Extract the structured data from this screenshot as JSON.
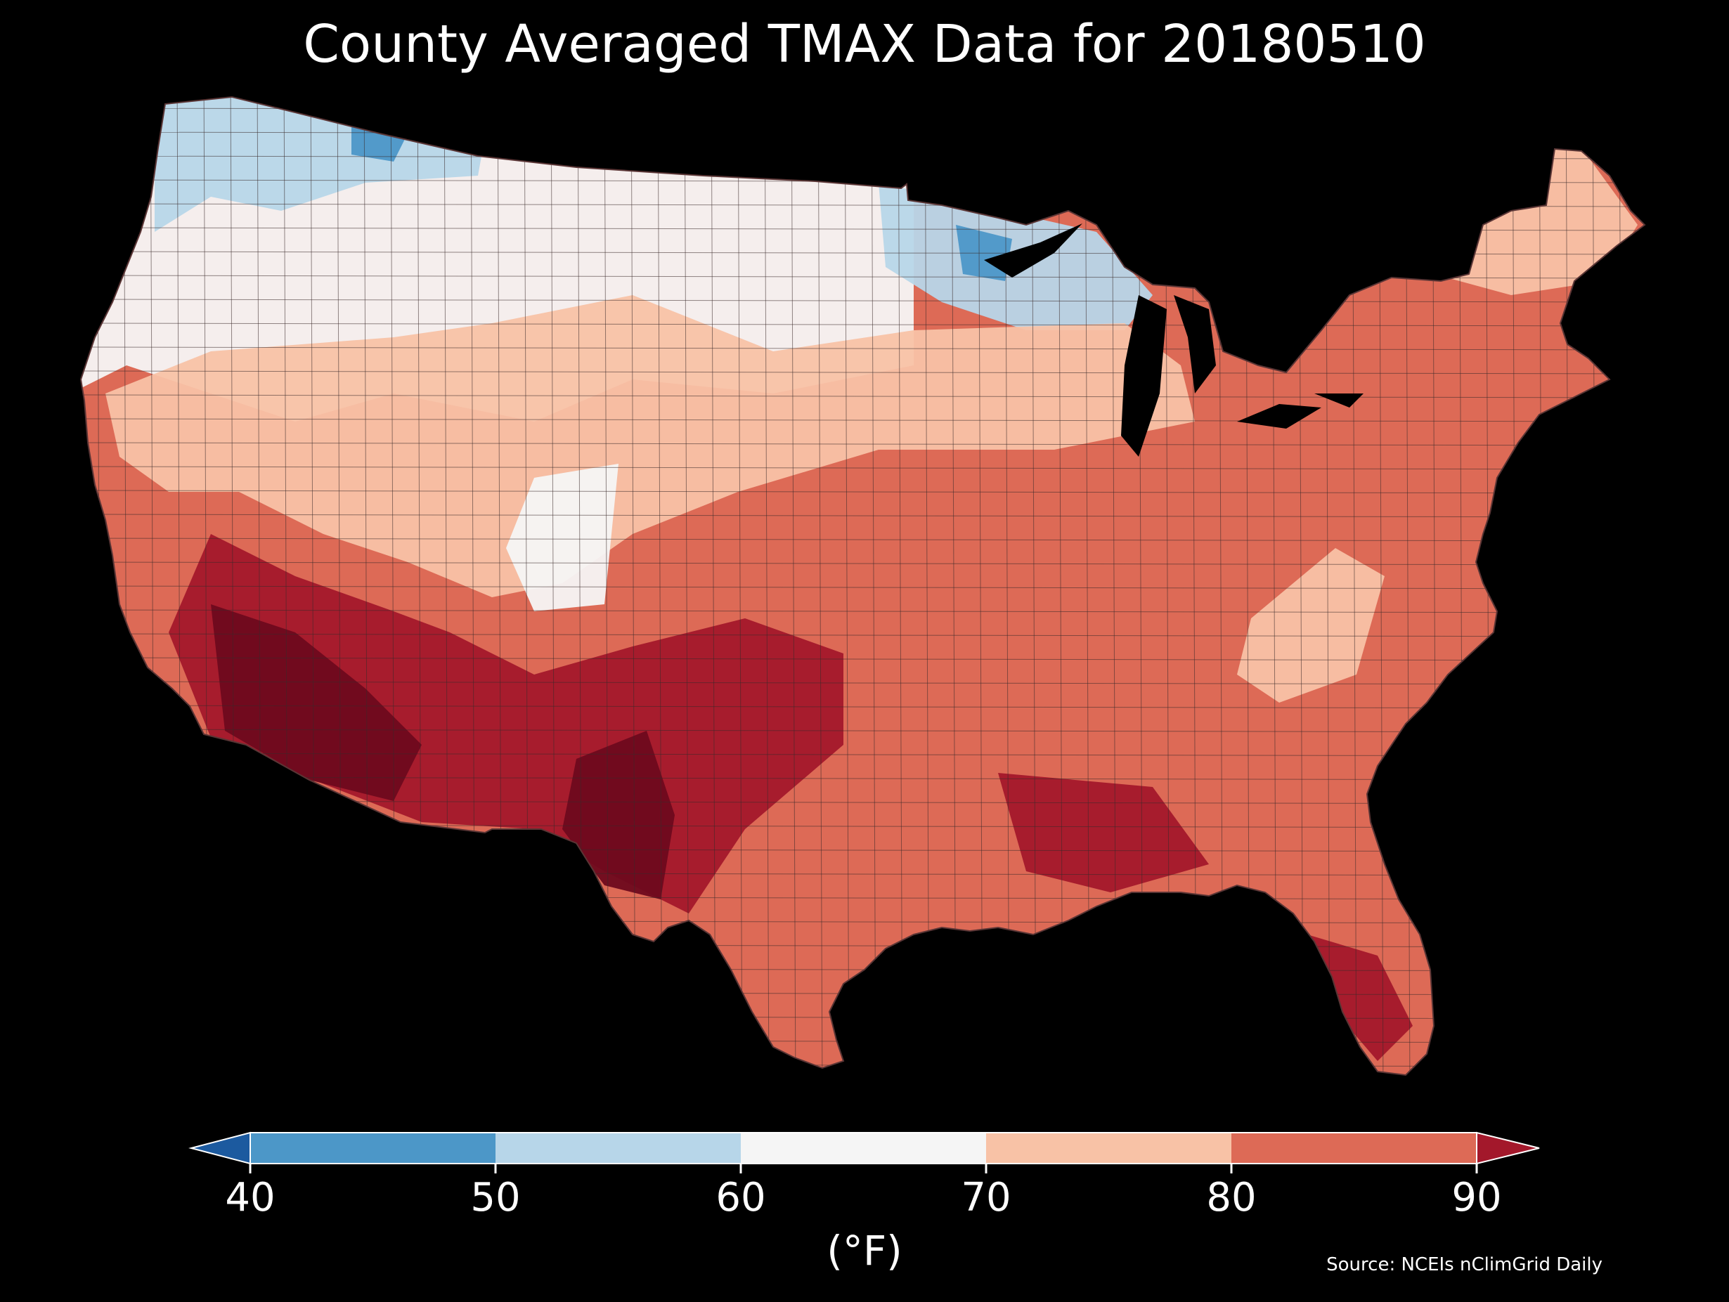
{
  "title": "County Averaged TMAX Data for 20180510",
  "colorbar": {
    "unit": "(°F)",
    "ticks": [
      "40",
      "50",
      "60",
      "70",
      "80",
      "90"
    ],
    "bins": [
      {
        "range": [
          null,
          40
        ],
        "color": "#1c5a9f"
      },
      {
        "range": [
          40,
          50
        ],
        "color": "#4c97c8"
      },
      {
        "range": [
          50,
          60
        ],
        "color": "#b7d6e9"
      },
      {
        "range": [
          60,
          70
        ],
        "color": "#f5f5f5"
      },
      {
        "range": [
          70,
          80
        ],
        "color": "#f8c2a6"
      },
      {
        "range": [
          80,
          90
        ],
        "color": "#dd6a56"
      },
      {
        "range": [
          90,
          null
        ],
        "color": "#a3182b"
      }
    ]
  },
  "map_colors": {
    "lt40": "#1c5a9f",
    "40_50": "#4c97c8",
    "50_60": "#b7d6e9",
    "60_70": "#f5f5f5",
    "70_80": "#f8c2a6",
    "80_90": "#dd6a56",
    "gt90": "#a3182b",
    "hot": "#6e0a1e",
    "background": "#000000",
    "border": "#3a2a2a"
  },
  "source": "Source: NCEIs nClimGrid Daily"
}
